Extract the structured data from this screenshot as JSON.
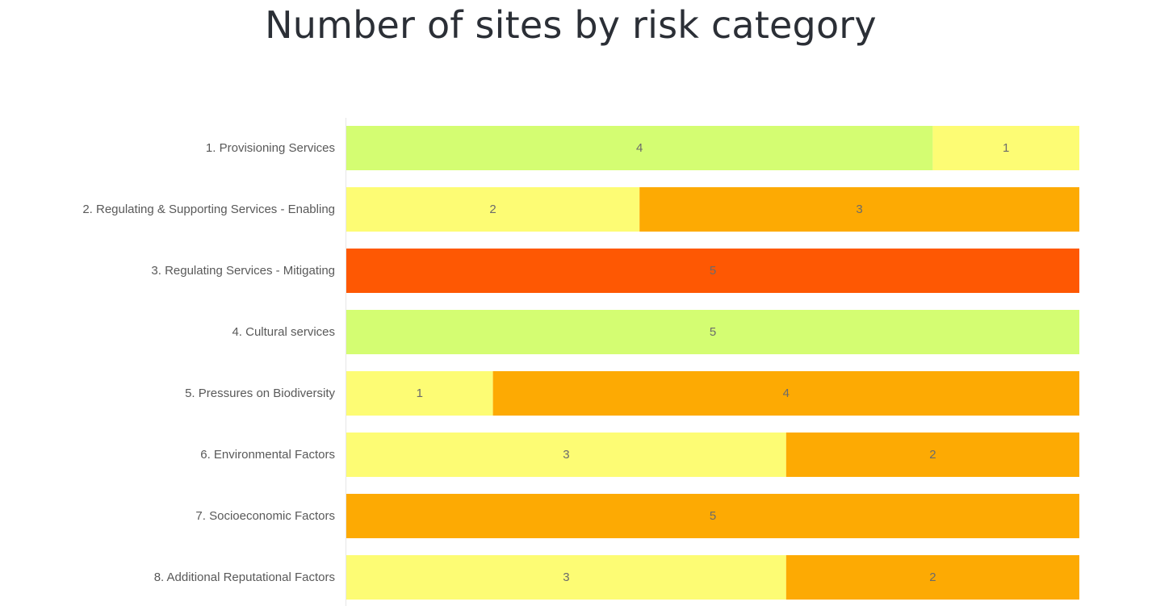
{
  "chart_data": {
    "type": "bar",
    "orientation": "horizontal",
    "stacked": true,
    "title": "Number of sites by risk category",
    "xlabel": "",
    "ylabel": "",
    "xlim": [
      0,
      5
    ],
    "grid": false,
    "legend": "none",
    "categories": [
      "1. Provisioning Services",
      "2. Regulating & Supporting Services - Enabling",
      "3. Regulating Services - Mitigating",
      "4. Cultural services",
      "5. Pressures on Biodiversity",
      "6. Environmental Factors",
      "7. Socioeconomic Factors",
      "8. Additional Reputational Factors"
    ],
    "series": [
      {
        "color": "#d4fd72",
        "values": [
          4,
          0,
          0,
          5,
          0,
          0,
          0,
          0
        ]
      },
      {
        "color": "#fdfc74",
        "values": [
          1,
          2,
          0,
          0,
          1,
          3,
          0,
          3
        ]
      },
      {
        "color": "#fdaa03",
        "values": [
          0,
          3,
          0,
          0,
          4,
          2,
          5,
          2
        ]
      },
      {
        "color": "#fe5803",
        "values": [
          0,
          0,
          5,
          0,
          0,
          0,
          0,
          0
        ]
      }
    ]
  }
}
